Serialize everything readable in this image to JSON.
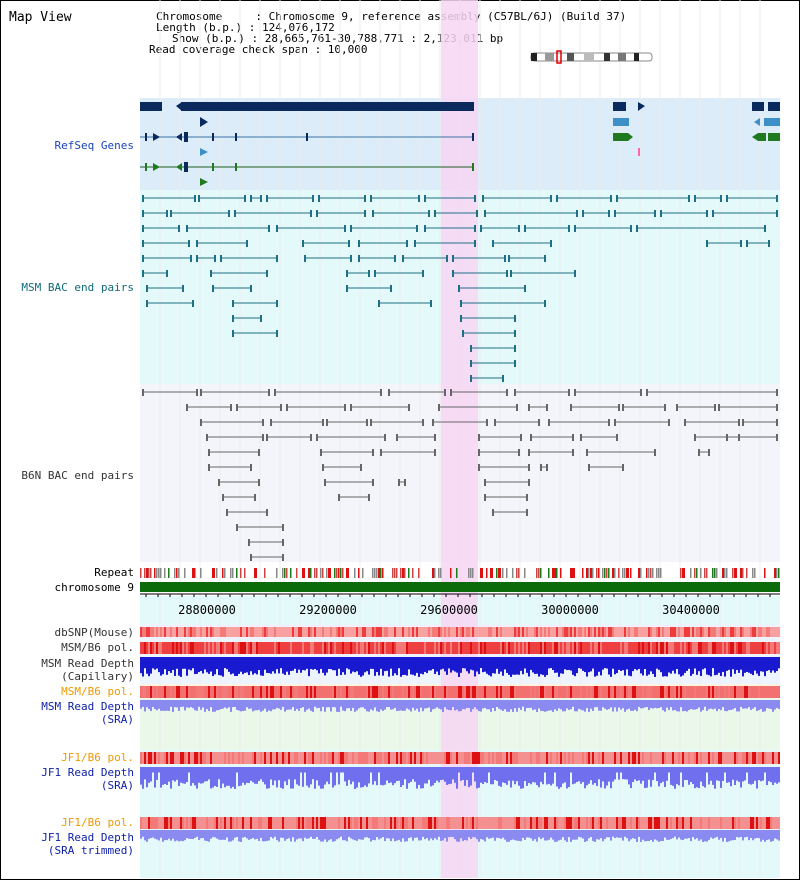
{
  "header": {
    "title": "Map View",
    "info": {
      "chromosome": "Chromosome     : Chromosome 9, reference assembly (C57BL/6J) (Build 37)",
      "length": "Length (b.p.) : 124,076,172",
      "show": "Show (b.p.) : 28,665,761-30,788,771 : 2,123,011 bp",
      "coverage": "Read coverage check span : 10,000"
    }
  },
  "tracks": {
    "refseq": "RefSeq Genes",
    "msm_bac": "MSM BAC end pairs",
    "b6n_bac": "B6N BAC end pairs",
    "repeat": "Repeat",
    "chromosome": "chromosome 9",
    "dbsnp": "dbSNP(Mouse)",
    "msm_b6_pol_1": "MSM/B6 pol.",
    "msm_depth_cap_1": "MSM Read Depth",
    "msm_depth_cap_2": "(Capillary)",
    "msm_b6_pol_2": "MSM/B6 pol.",
    "msm_depth_sra_1": "MSM Read Depth",
    "msm_depth_sra_2": "(SRA)",
    "jf1_pol_1": "JF1/B6 pol.",
    "jf1_depth_1": "JF1 Read Depth",
    "jf1_depth_2": "(SRA)",
    "jf1_pol_2": "JF1/B6 pol.",
    "jf1_trim_1": "JF1 Read Depth",
    "jf1_trim_2": "(SRA trimmed)"
  },
  "axis": {
    "ticks": [
      "28800000",
      "29200000",
      "29600000",
      "30000000",
      "30400000"
    ]
  },
  "colors": {
    "refseq_dark": "#0a2a5e",
    "refseq_light": "#3d8fc7",
    "refseq_green": "#1f7a1f",
    "msm_bac": "#1f6f86",
    "b6n_bac": "#666666",
    "chromosome_bar": "#0b6b0b",
    "highlight": "#f7d6f3",
    "depth_blue": "#1919d0",
    "depth_light": "#8a8af0"
  }
}
